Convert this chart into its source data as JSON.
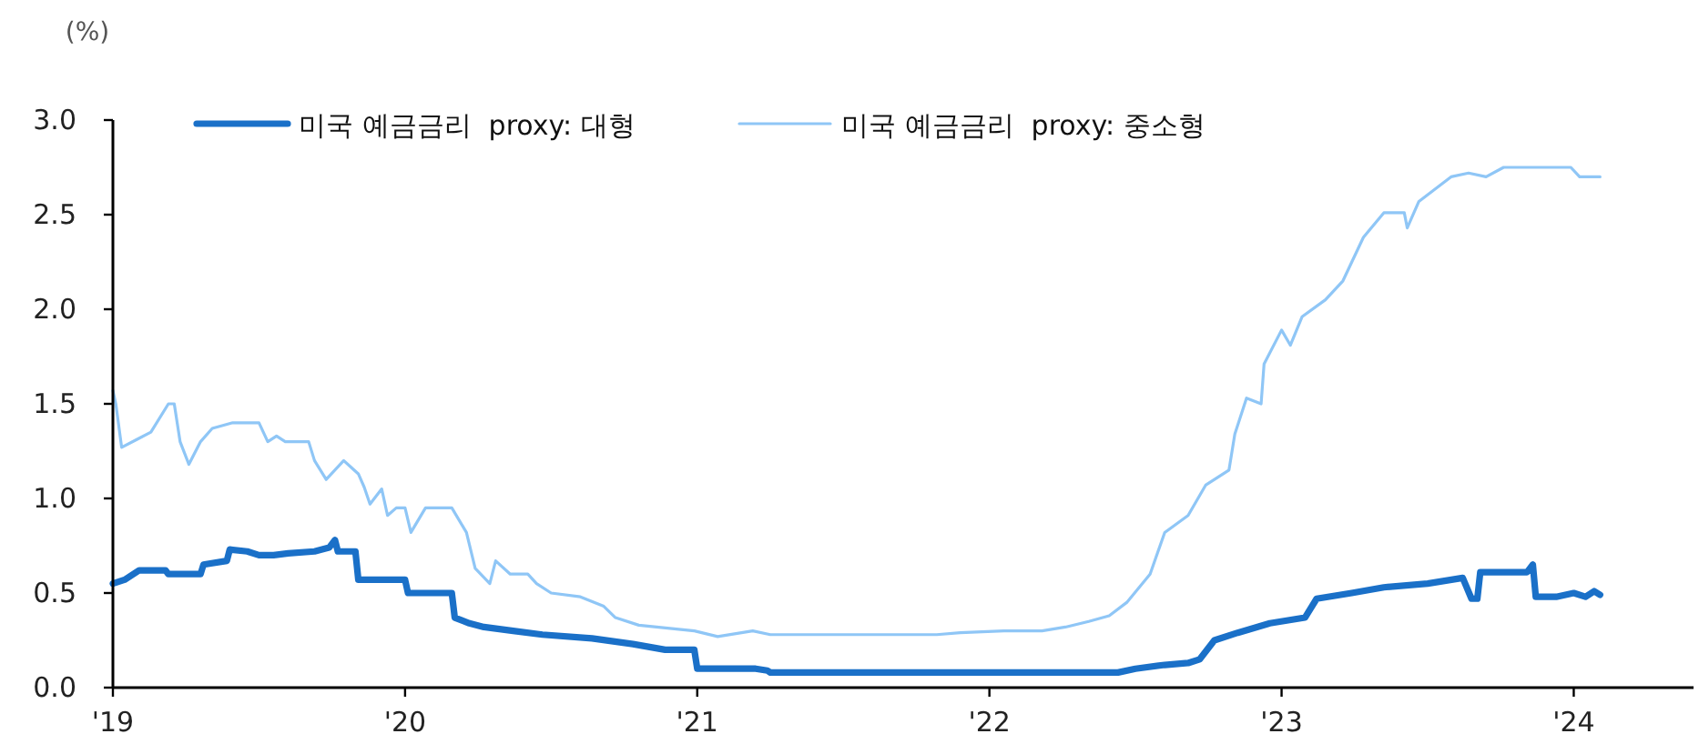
{
  "chart_data": {
    "type": "line",
    "ylabel": "(%)",
    "xlim": [
      2019,
      2024.41
    ],
    "xticks": [
      {
        "value": 2019,
        "label": "'19"
      },
      {
        "value": 2020,
        "label": "'20"
      },
      {
        "value": 2021,
        "label": "'21"
      },
      {
        "value": 2022,
        "label": "'22"
      },
      {
        "value": 2023,
        "label": "'23"
      },
      {
        "value": 2024,
        "label": "'24"
      }
    ],
    "ylim": [
      0,
      3.0
    ],
    "yticks": [
      {
        "value": 0,
        "label": "0.0"
      },
      {
        "value": 0.5,
        "label": "0.5"
      },
      {
        "value": 1,
        "label": "1.0"
      },
      {
        "value": 1.5,
        "label": "1.5"
      },
      {
        "value": 2,
        "label": "2.0"
      },
      {
        "value": 2.5,
        "label": "2.5"
      },
      {
        "value": 3,
        "label": "3.0"
      }
    ],
    "grid": false,
    "legend": "top",
    "marker": "none",
    "line_style": "solid",
    "series": [
      {
        "name": "미국 예금금리  proxy: 대형",
        "color": "#1a70c8",
        "x": [
          2019,
          2019.04,
          2019.09,
          2019.18,
          2019.19,
          2019.3,
          2019.31,
          2019.39,
          2019.4,
          2019.46,
          2019.5,
          2019.55,
          2019.6,
          2019.69,
          2019.74,
          2019.76,
          2019.77,
          2019.83,
          2019.84,
          2020.0,
          2020.01,
          2020.16,
          2020.17,
          2020.22,
          2020.27,
          2020.37,
          2020.47,
          2020.64,
          2020.78,
          2020.89,
          2020.99,
          2021.0,
          2021.2,
          2021.24,
          2021.25,
          2022.44,
          2022.5,
          2022.6,
          2022.68,
          2022.72,
          2022.77,
          2022.85,
          2022.96,
          2023.08,
          2023.12,
          2023.24,
          2023.35,
          2023.5,
          2023.62,
          2023.65,
          2023.67,
          2023.68,
          2023.84,
          2023.86,
          2023.87,
          2023.94,
          2024.0,
          2024.04,
          2024.07,
          2024.09
        ],
        "values": [
          0.55,
          0.57,
          0.62,
          0.62,
          0.6,
          0.6,
          0.65,
          0.67,
          0.73,
          0.72,
          0.7,
          0.7,
          0.71,
          0.72,
          0.74,
          0.78,
          0.72,
          0.72,
          0.57,
          0.57,
          0.5,
          0.5,
          0.37,
          0.34,
          0.32,
          0.3,
          0.28,
          0.26,
          0.23,
          0.2,
          0.2,
          0.1,
          0.1,
          0.09,
          0.08,
          0.08,
          0.1,
          0.12,
          0.13,
          0.15,
          0.25,
          0.29,
          0.34,
          0.37,
          0.47,
          0.5,
          0.53,
          0.55,
          0.58,
          0.47,
          0.47,
          0.61,
          0.61,
          0.65,
          0.48,
          0.48,
          0.5,
          0.48,
          0.51,
          0.49
        ]
      },
      {
        "name": "미국 예금금리  proxy: 중소형",
        "color": "#8fc6f6",
        "x": [
          2019,
          2019.01,
          2019.03,
          2019.08,
          2019.13,
          2019.19,
          2019.21,
          2019.23,
          2019.26,
          2019.3,
          2019.34,
          2019.41,
          2019.5,
          2019.53,
          2019.56,
          2019.59,
          2019.67,
          2019.69,
          2019.73,
          2019.79,
          2019.84,
          2019.86,
          2019.88,
          2019.92,
          2019.94,
          2019.97,
          2020.0,
          2020.02,
          2020.07,
          2020.16,
          2020.21,
          2020.24,
          2020.29,
          2020.31,
          2020.36,
          2020.42,
          2020.45,
          2020.5,
          2020.6,
          2020.68,
          2020.72,
          2020.8,
          2020.99,
          2021.07,
          2021.19,
          2021.25,
          2021.82,
          2021.9,
          2022.05,
          2022.18,
          2022.26,
          2022.34,
          2022.41,
          2022.47,
          2022.55,
          2022.6,
          2022.68,
          2022.74,
          2022.82,
          2022.84,
          2022.88,
          2022.93,
          2022.94,
          2023.0,
          2023.03,
          2023.07,
          2023.15,
          2023.21,
          2023.28,
          2023.35,
          2023.42,
          2023.43,
          2023.47,
          2023.58,
          2023.64,
          2023.7,
          2023.76,
          2023.99,
          2024.02,
          2024.09
        ],
        "values": [
          1.57,
          1.5,
          1.27,
          1.31,
          1.35,
          1.5,
          1.5,
          1.3,
          1.18,
          1.3,
          1.37,
          1.4,
          1.4,
          1.3,
          1.33,
          1.3,
          1.3,
          1.2,
          1.1,
          1.2,
          1.13,
          1.06,
          0.97,
          1.05,
          0.91,
          0.95,
          0.95,
          0.82,
          0.95,
          0.95,
          0.82,
          0.63,
          0.55,
          0.67,
          0.6,
          0.6,
          0.55,
          0.5,
          0.48,
          0.43,
          0.37,
          0.33,
          0.3,
          0.27,
          0.3,
          0.28,
          0.28,
          0.29,
          0.3,
          0.3,
          0.32,
          0.35,
          0.38,
          0.45,
          0.6,
          0.82,
          0.91,
          1.07,
          1.15,
          1.34,
          1.53,
          1.5,
          1.71,
          1.89,
          1.81,
          1.96,
          2.05,
          2.15,
          2.38,
          2.51,
          2.51,
          2.43,
          2.57,
          2.7,
          2.72,
          2.7,
          2.75,
          2.75,
          2.7,
          2.7
        ]
      }
    ]
  }
}
